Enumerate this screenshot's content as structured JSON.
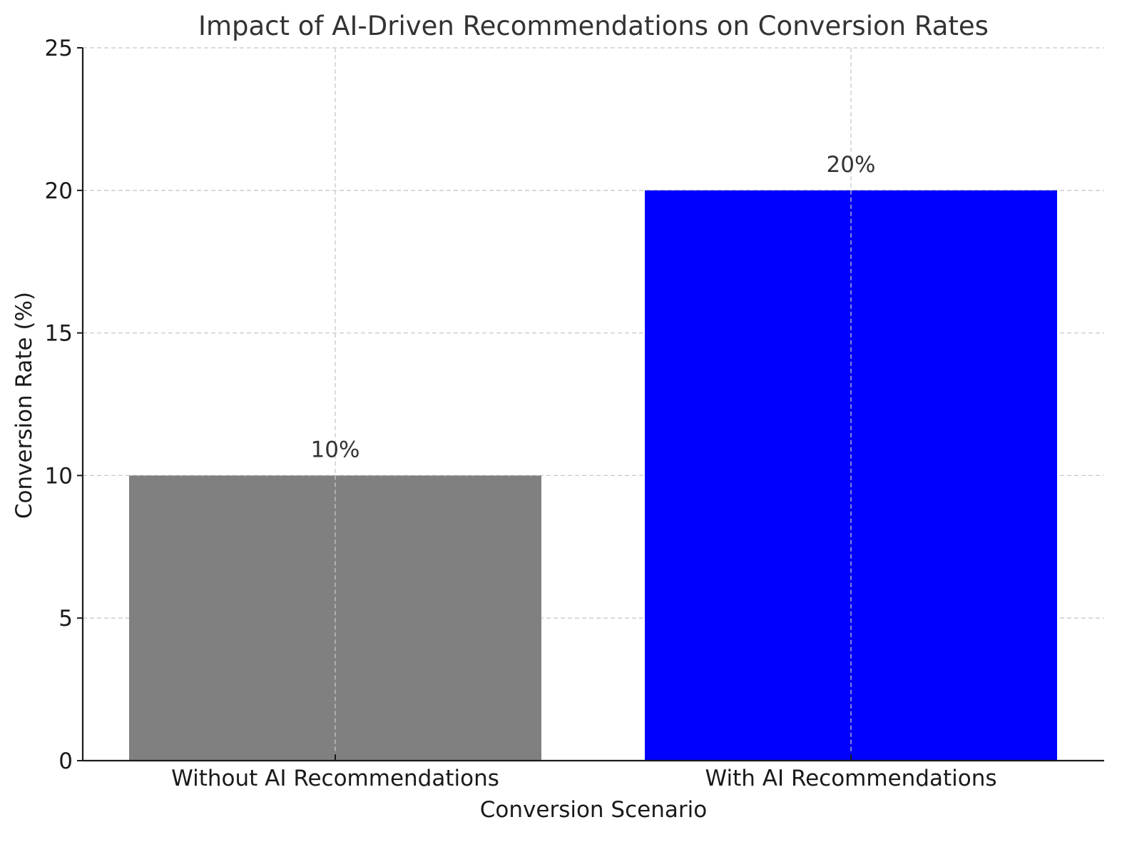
{
  "chart_data": {
    "type": "bar",
    "title": "Impact of AI-Driven Recommendations on Conversion Rates",
    "xlabel": "Conversion Scenario",
    "ylabel": "Conversion Rate (%)",
    "categories": [
      "Without AI Recommendations",
      "With AI Recommendations"
    ],
    "values": [
      10,
      20
    ],
    "data_labels": [
      "10%",
      "20%"
    ],
    "colors": [
      "#808080",
      "#0000ff"
    ],
    "ylim": [
      0,
      25
    ],
    "yticks": [
      0,
      5,
      10,
      15,
      20,
      25
    ],
    "grid": true,
    "legend": "none"
  }
}
